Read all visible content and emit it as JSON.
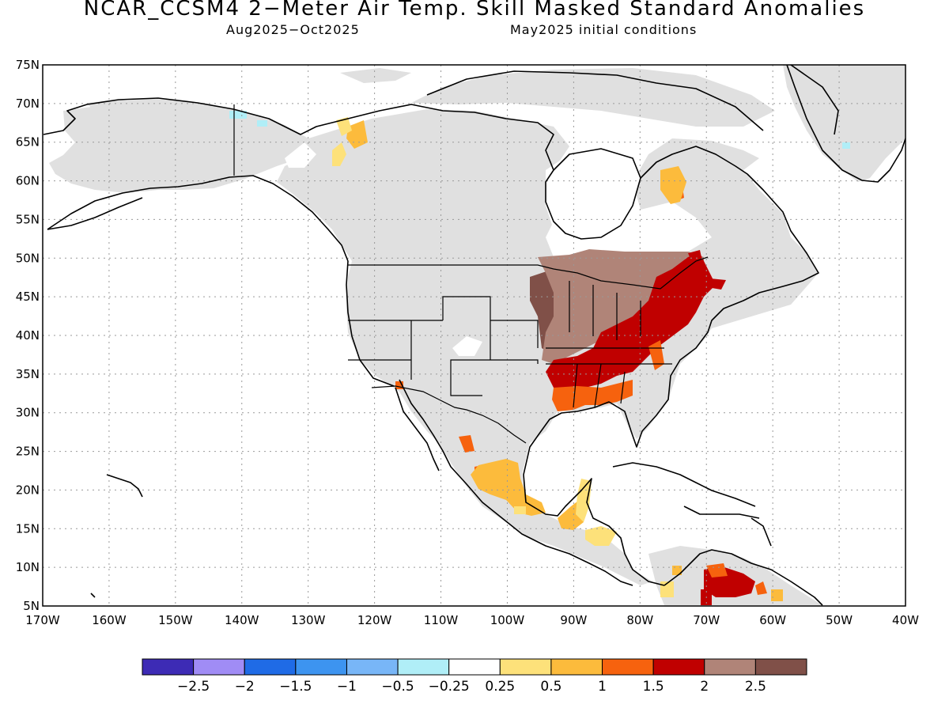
{
  "title": "NCAR_CCSM4 2−Meter Air Temp. Skill Masked Standard Anomalies",
  "subtitle_left": "Aug2025−Oct2025",
  "subtitle_right": "May2025 initial conditions",
  "lat_labels": [
    "75N",
    "70N",
    "65N",
    "60N",
    "55N",
    "50N",
    "45N",
    "40N",
    "35N",
    "30N",
    "25N",
    "20N",
    "15N",
    "10N",
    "5N"
  ],
  "lon_labels": [
    "170W",
    "160W",
    "150W",
    "140W",
    "130W",
    "120W",
    "110W",
    "100W",
    "90W",
    "80W",
    "70W",
    "60W",
    "50W",
    "40W"
  ],
  "colorbar": {
    "colors": [
      "#3d2bb5",
      "#a08cf5",
      "#1f6be6",
      "#3d94f0",
      "#78b6f7",
      "#b0eef7",
      "#ffffff",
      "#fde17a",
      "#fcbb3c",
      "#f6620e",
      "#c00000",
      "#b08478",
      "#805048"
    ],
    "labels": [
      "−2.5",
      "−2",
      "−1.5",
      "−1",
      "−0.5",
      "−0.25",
      "0.25",
      "0.5",
      "1",
      "1.5",
      "2",
      "2.5"
    ]
  },
  "map_colors": {
    "land_masked": "#e0e0e0",
    "neutral": "#ffffff",
    "pos_0_25": "#fde17a",
    "pos_0_5": "#fcbb3c",
    "pos_1": "#f6620e",
    "pos_1_5": "#c00000",
    "pos_2": "#b08478",
    "pos_2_5": "#805048",
    "neg_0_25": "#b0eef7"
  }
}
